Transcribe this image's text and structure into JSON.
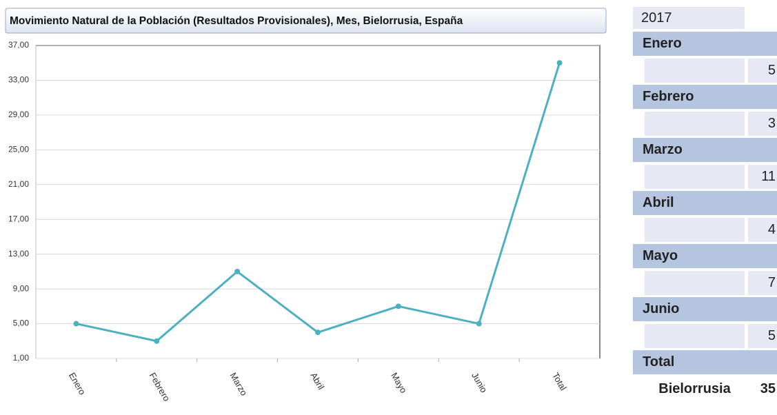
{
  "chart_data": {
    "type": "line",
    "title": "Movimiento Natural de la Población (Resultados Provisionales), Mes, Bielorrusia, España",
    "categories": [
      "Enero",
      "Febrero",
      "Marzo",
      "Abril",
      "Mayo",
      "Junio",
      "Total"
    ],
    "values": [
      5,
      3,
      11,
      4,
      7,
      5,
      35
    ],
    "color": "#4bb0c2",
    "ylim": [
      1,
      37
    ],
    "yticks": [
      {
        "value": 1,
        "label": "1,00"
      },
      {
        "value": 5,
        "label": "5,00"
      },
      {
        "value": 9,
        "label": "9,00"
      },
      {
        "value": 13,
        "label": "13,00"
      },
      {
        "value": 17,
        "label": "17,00"
      },
      {
        "value": 21,
        "label": "21,00"
      },
      {
        "value": 25,
        "label": "25,00"
      },
      {
        "value": 29,
        "label": "29,00"
      },
      {
        "value": 33,
        "label": "33,00"
      },
      {
        "value": 37,
        "label": "37,00"
      }
    ],
    "grid": true
  },
  "table": {
    "year": "2017",
    "row_label": "Bielorrusia"
  }
}
